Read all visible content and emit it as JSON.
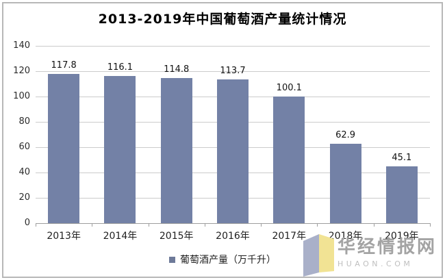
{
  "chart_data": {
    "type": "bar",
    "title": "2013-2019年中国葡萄酒产量统计情况",
    "categories": [
      "2013年",
      "2014年",
      "2015年",
      "2016年",
      "2017年",
      "2018年",
      "2019年"
    ],
    "values": [
      117.8,
      116.1,
      114.8,
      113.7,
      100.1,
      62.9,
      45.1
    ],
    "series_name": "葡萄酒产量（万千升）",
    "xlabel": "",
    "ylabel": "",
    "ylim": [
      0,
      140
    ],
    "yticks": [
      0,
      20,
      40,
      60,
      80,
      100,
      120,
      140
    ],
    "grid": true,
    "legend_position": "bottom",
    "bar_color": "#7381a6"
  },
  "legend": {
    "label": "葡萄酒产量（万千升）",
    "marker_color": "#6e7a99"
  },
  "watermark": {
    "name": "华经情报网",
    "domain": "HUAON.COM",
    "logo_left_color": "#a9b0c9",
    "logo_right_color": "#f1e394"
  },
  "colors": {
    "bar": "#7381a6",
    "gridline": "#cbcbcb",
    "axis": "#9e9e9e",
    "frame_border": "#b7b7b7",
    "background": "#ffffff"
  }
}
